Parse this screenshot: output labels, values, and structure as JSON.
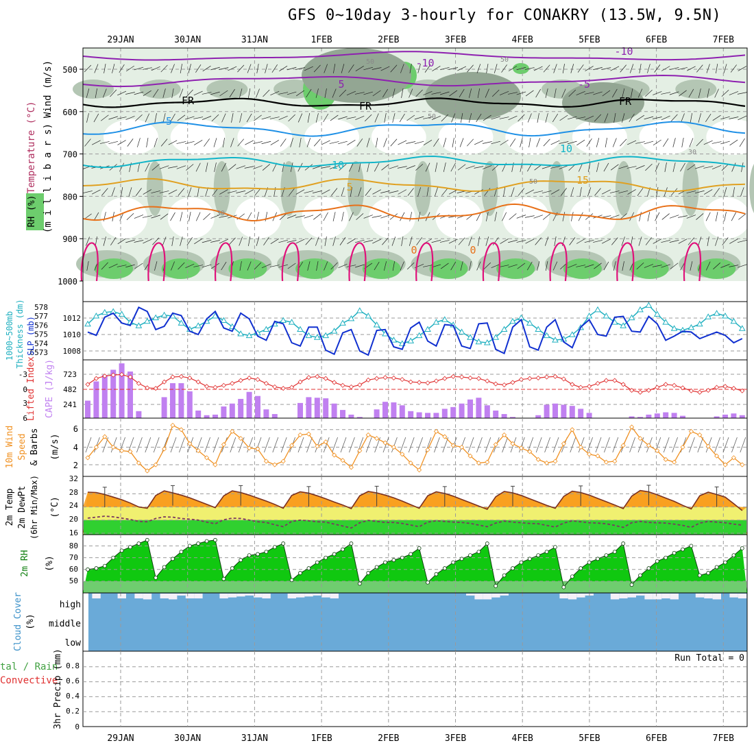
{
  "title": "GFS 0~10day 3-hourly for CONAKRY (13.5W, 9.5N)",
  "days": [
    "29JAN",
    "30JAN",
    "31JAN",
    "1FEB",
    "2FEB",
    "3FEB",
    "4FEB",
    "5FEB",
    "6FEB",
    "7FEB"
  ],
  "colors": {
    "rh_light": "#e4efe4",
    "rh_mid": "#b4c6b4",
    "rh_dark": "#93a693",
    "rh_green": "#6dcd6d",
    "temp_m10": "#8e20b0",
    "temp_fr": "#000000",
    "temp_5": "#1e90e6",
    "temp_10": "#10b4c8",
    "temp_15": "#e0a020",
    "temp_20": "#e87018",
    "temp_25": "#e0107a",
    "thickness": "#20b0c0",
    "slp": "#1030d0",
    "lifted": "#e03030",
    "cape": "#c080f0",
    "wind_speed": "#f09020",
    "temp_max_band": "#f8a020",
    "temp_mid_band": "#f0f070",
    "temp_low_band": "#30d030",
    "rh_fill": "#10c810",
    "cloud_blue": "#6aaad8",
    "cloud_white": "#f4f0f8"
  },
  "panels": {
    "upper": {
      "ylabel_wind": "Wind (m/s)",
      "ylabel_temp": "Temperature (°C)",
      "ylabel_rh": "RH (%)",
      "ylabel_units": "(m i l l i b a r s)",
      "levels": [
        "500",
        "600",
        "700",
        "800",
        "900",
        "1000"
      ],
      "contour_labels": [
        "-10",
        "-10",
        "5",
        "-5",
        "FR",
        "FR",
        "FR",
        "-5",
        "10",
        "10",
        "15",
        "5",
        "0",
        "0",
        "50",
        "50",
        "50",
        "50",
        "30",
        "30"
      ]
    },
    "thickness": {
      "label_thk": "1000~500mb",
      "label_thk2": "Thickness (dm)",
      "label_slp": "SLP (mb)",
      "thk_ticks": [
        "578",
        "577",
        "576",
        "575",
        "574",
        "6573"
      ],
      "slp_ticks": [
        "1012",
        "1010",
        "1008"
      ]
    },
    "cape": {
      "label_li": "Lifted Index",
      "label_cape": "CAPE (J/kg)",
      "li_ticks": [
        "-3",
        "0",
        "3",
        "6"
      ],
      "cape_ticks": [
        "723",
        "482",
        "241"
      ]
    },
    "wind": {
      "label1": "10m Wind",
      "label2": "Speed",
      "label3": "& Barbs",
      "label4": "(m/s)",
      "ticks": [
        "6",
        "4",
        "2"
      ]
    },
    "temp": {
      "label1": "2m Temp",
      "label2": "2m DewPt",
      "label3": "(6hr Min/Max)",
      "label4": "(°C)",
      "ticks": [
        "32",
        "28",
        "24",
        "20",
        "16"
      ]
    },
    "rh": {
      "label1": "2m RH",
      "label2": "(%)",
      "ticks": [
        "80",
        "70",
        "60",
        "50"
      ]
    },
    "cloud": {
      "label1": "Cloud Cover",
      "label2": "(%)",
      "rows": [
        "high",
        "middle",
        "low"
      ]
    },
    "precip": {
      "label1": "tal / Rain",
      "label2": "Convective",
      "label3": "3hr Precip (mm)",
      "run_total": "Run Total = 0",
      "ticks": [
        "0.8",
        "0.6",
        "0.4",
        "0.2",
        "0"
      ]
    }
  },
  "chart_data": [
    {
      "type": "line",
      "name": "slp_thickness",
      "x_unit": "3-hour steps from 28JAN 18Z",
      "series": [
        {
          "name": "SLP (mb)",
          "axis": "right",
          "values": [
            1010.3,
            1009.9,
            1012.1,
            1012.6,
            1011.4,
            1011.1,
            1013.3,
            1012.8,
            1010.6,
            1011.0,
            1012.6,
            1012.3,
            1010.4,
            1010.0,
            1011.9,
            1012.8,
            1010.8,
            1010.4,
            1012.6,
            1011.9,
            1009.8,
            1009.3,
            1011.6,
            1011.3,
            1009.0,
            1008.6,
            1010.9,
            1010.9,
            1008.1,
            1007.6,
            1010.2,
            1010.6,
            1008.0,
            1007.5,
            1010.5,
            1010.6,
            1008.5,
            1008.2,
            1010.8,
            1011.5,
            1009.2,
            1008.6,
            1011.2,
            1011.1,
            1008.6,
            1008.3,
            1011.3,
            1011.4,
            1008.2,
            1007.7,
            1010.9,
            1011.8,
            1008.5,
            1008.1,
            1010.9,
            1011.8,
            1009.1,
            1008.4,
            1010.9,
            1011.8,
            1010.0,
            1009.8,
            1012.1,
            1012.2,
            1010.4,
            1010.3,
            1012.2,
            1011.3,
            1009.3,
            1009.8,
            1010.4,
            1010.3,
            1009.5,
            1009.9,
            1010.3,
            1009.9,
            1009.0,
            1009.5
          ]
        },
        {
          "name": "1000~500mb Thickness (dm)",
          "axis": "left",
          "values": [
            576.1,
            577.0,
            577.4,
            577.5,
            577.2,
            576.3,
            575.9,
            576.4,
            576.8,
            577.1,
            577.0,
            576.2,
            575.5,
            575.9,
            576.4,
            577.0,
            576.5,
            575.8,
            575.0,
            574.8,
            575.1,
            575.5,
            576.1,
            576.5,
            576.3,
            575.5,
            574.8,
            574.6,
            574.8,
            575.3,
            576.2,
            576.7,
            577.6,
            577.0,
            576.0,
            575.0,
            574.3,
            573.9,
            574.2,
            574.8,
            575.5,
            576.3,
            576.6,
            576.0,
            575.2,
            574.6,
            574.1,
            574.0,
            574.6,
            575.5,
            576.4,
            576.8,
            576.2,
            575.5,
            574.8,
            574.3,
            574.4,
            574.9,
            575.7,
            577.0,
            577.7,
            577.0,
            576.3,
            575.9,
            576.8,
            577.7,
            578.2,
            577.2,
            576.3,
            575.6,
            575.4,
            575.7,
            576.1,
            576.9,
            577.3,
            577.0,
            576.4,
            575.6
          ]
        }
      ]
    },
    {
      "type": "bar",
      "name": "cape_lifted_index",
      "series": [
        {
          "name": "CAPE (J/kg)",
          "values": [
            300,
            630,
            740,
            830,
            940,
            800,
            120,
            0,
            0,
            360,
            600,
            600,
            460,
            130,
            50,
            60,
            200,
            250,
            330,
            450,
            380,
            150,
            70,
            0,
            0,
            260,
            360,
            350,
            340,
            250,
            140,
            60,
            20,
            0,
            150,
            280,
            270,
            220,
            120,
            100,
            90,
            90,
            160,
            190,
            250,
            320,
            350,
            220,
            130,
            70,
            20,
            0,
            0,
            50,
            230,
            250,
            230,
            210,
            160,
            90,
            0,
            0,
            0,
            0,
            30,
            20,
            60,
            80,
            100,
            90,
            40,
            0,
            0,
            0,
            30,
            60,
            80,
            50
          ]
        },
        {
          "name": "Lifted Index",
          "values": [
            -1.0,
            -2.2,
            -2.7,
            -2.9,
            -3.0,
            -2.5,
            -1.2,
            -0.3,
            -0.2,
            -1.5,
            -2.5,
            -2.6,
            -2.3,
            -1.5,
            -0.6,
            -0.4,
            -0.8,
            -1.2,
            -1.8,
            -2.3,
            -2.0,
            -1.2,
            -0.5,
            -0.2,
            -0.4,
            -1.5,
            -2.4,
            -2.6,
            -2.2,
            -1.4,
            -0.8,
            -0.5,
            -0.9,
            -1.9,
            -2.2,
            -2.4,
            -2.3,
            -2.0,
            -1.5,
            -1.4,
            -1.3,
            -1.7,
            -2.2,
            -2.6,
            -2.5,
            -2.3,
            -2.2,
            -1.7,
            -1.1,
            -0.9,
            -1.4,
            -2.0,
            -2.2,
            -2.3,
            -2.5,
            -2.6,
            -2.1,
            -1.0,
            -0.4,
            -0.6,
            -1.2,
            -1.8,
            -1.8,
            -1.0,
            0.2,
            0.6,
            0.2,
            -0.4,
            -1.0,
            -0.8,
            -0.3,
            0.3,
            0.6,
            0.2,
            -0.4,
            -0.6,
            -0.2,
            0.3
          ]
        }
      ]
    },
    {
      "type": "line",
      "name": "wind_speed",
      "series": [
        {
          "name": "10m Wind Speed (m/s)",
          "values": [
            2.8,
            4.0,
            5.2,
            4.0,
            3.6,
            3.5,
            2.2,
            1.3,
            2.0,
            3.8,
            6.5,
            6.0,
            4.4,
            3.6,
            2.8,
            2.0,
            4.3,
            5.8,
            5.0,
            3.9,
            3.8,
            2.4,
            2.0,
            2.4,
            4.2,
            5.4,
            5.5,
            4.1,
            4.6,
            3.1,
            2.5,
            1.7,
            3.6,
            5.4,
            5.0,
            4.5,
            4.0,
            3.2,
            2.2,
            1.4,
            3.7,
            5.8,
            5.2,
            4.2,
            4.0,
            3.0,
            2.2,
            2.3,
            4.3,
            5.4,
            4.4,
            3.9,
            3.5,
            2.6,
            2.2,
            2.4,
            4.4,
            6.0,
            4.0,
            3.2,
            3.0,
            2.3,
            2.4,
            4.2,
            6.3,
            5.0,
            4.2,
            3.6,
            2.6,
            2.3,
            4.0,
            5.8,
            5.4,
            4.1,
            3.0,
            2.0,
            2.8,
            2.0
          ]
        }
      ]
    },
    {
      "type": "area",
      "name": "temperature",
      "series": [
        {
          "name": "2m Temp (°C)",
          "values": [
            28.5,
            28.4,
            27.8,
            27.0,
            26.2,
            25.2,
            24.0,
            23.6,
            27.5,
            28.9,
            28.3,
            27.6,
            26.8,
            25.8,
            24.8,
            23.8,
            27.4,
            28.9,
            28.4,
            27.6,
            26.7,
            25.8,
            24.8,
            23.6,
            27.5,
            28.6,
            28.2,
            27.4,
            26.5,
            25.5,
            24.6,
            23.5,
            27.4,
            28.7,
            28.3,
            27.6,
            26.8,
            25.8,
            24.7,
            23.6,
            27.4,
            28.6,
            28.1,
            27.3,
            26.3,
            25.3,
            24.3,
            23.3,
            27.1,
            28.7,
            28.3,
            27.5,
            26.5,
            25.5,
            24.5,
            23.6,
            27.2,
            28.8,
            28.4,
            27.6,
            26.6,
            25.6,
            24.6,
            23.5,
            27.3,
            29.0,
            28.6,
            27.7,
            26.7,
            25.7,
            24.5,
            23.4,
            27.4,
            28.5,
            27.8,
            27.0,
            25.0,
            22.9
          ]
        },
        {
          "name": "2m DewPt (°C)",
          "values": [
            20.6,
            20.9,
            21.2,
            21.0,
            20.6,
            20.2,
            19.6,
            19.5,
            20.5,
            21.0,
            20.9,
            20.5,
            20.3,
            20.0,
            19.4,
            18.9,
            20.1,
            20.6,
            20.5,
            20.0,
            19.5,
            19.3,
            18.6,
            18.0,
            19.6,
            20.0,
            19.8,
            19.5,
            19.4,
            18.8,
            18.2,
            17.6,
            19.2,
            19.9,
            19.6,
            19.3,
            19.3,
            19.0,
            18.5,
            18.0,
            19.4,
            19.8,
            19.6,
            19.4,
            19.3,
            19.0,
            18.5,
            18.0,
            19.1,
            19.7,
            19.4,
            19.2,
            19.0,
            18.9,
            18.4,
            17.9,
            19.1,
            19.8,
            19.5,
            19.2,
            19.1,
            18.9,
            18.4,
            17.8,
            19.2,
            19.6,
            19.3,
            19.2,
            19.1,
            18.8,
            18.4,
            17.8,
            19.1,
            19.6,
            19.4,
            19.2,
            18.8,
            18.5
          ]
        }
      ]
    },
    {
      "type": "area",
      "name": "relative_humidity",
      "series": [
        {
          "name": "2m RH (%)",
          "values": [
            60,
            61,
            63,
            70,
            76,
            79,
            82,
            85,
            53,
            62,
            69,
            75,
            80,
            82,
            84,
            85,
            52,
            61,
            68,
            72,
            73,
            75,
            79,
            82,
            51,
            57,
            61,
            66,
            70,
            73,
            77,
            82,
            48,
            57,
            62,
            66,
            68,
            70,
            73,
            78,
            49,
            56,
            61,
            66,
            69,
            72,
            75,
            82,
            46,
            55,
            61,
            66,
            69,
            72,
            75,
            79,
            45,
            54,
            61,
            66,
            69,
            72,
            75,
            82,
            47,
            55,
            61,
            67,
            70,
            74,
            77,
            80,
            55,
            57,
            62,
            66,
            72,
            78
          ]
        }
      ]
    },
    {
      "type": "heatmap",
      "name": "cloud_cover",
      "rows": [
        "high",
        "middle",
        "low"
      ],
      "high_values": [
        100,
        75,
        100,
        100,
        75,
        100,
        75,
        70,
        100,
        75,
        70,
        90,
        75,
        75,
        100,
        100,
        75,
        80,
        85,
        90,
        80,
        75,
        100,
        100,
        75,
        80,
        85,
        90,
        80,
        75,
        100,
        100,
        100,
        100,
        100,
        100,
        100,
        100,
        100,
        100,
        100,
        100,
        100,
        100,
        100,
        90,
        70,
        70,
        80,
        90,
        100,
        100,
        100,
        100,
        100,
        100,
        75,
        70,
        80,
        90,
        100,
        100,
        70,
        75,
        80,
        90,
        70,
        70,
        75,
        70,
        100,
        100,
        80,
        75,
        70,
        100,
        80,
        75
      ],
      "middle_values": [
        0,
        0,
        0,
        0,
        0,
        0,
        0,
        0,
        0,
        0,
        0,
        0,
        0,
        0,
        0,
        0,
        0,
        0,
        0,
        0,
        0,
        0,
        0,
        0,
        0,
        0,
        0,
        0,
        0,
        0,
        0,
        0,
        0,
        0,
        0,
        0,
        0,
        0,
        0,
        0,
        0,
        0,
        0,
        0,
        0,
        0,
        0,
        0,
        0,
        0,
        0,
        0,
        0,
        0,
        0,
        0,
        0,
        0,
        0,
        0,
        0,
        0,
        0,
        0,
        0,
        0,
        0,
        0,
        0,
        0,
        0,
        0,
        0,
        0,
        0,
        0,
        0,
        0
      ],
      "low_values": [
        0,
        0,
        0,
        0,
        0,
        0,
        0,
        0,
        0,
        0,
        0,
        0,
        0,
        0,
        0,
        0,
        0,
        0,
        0,
        0,
        0,
        0,
        0,
        0,
        0,
        0,
        0,
        0,
        0,
        0,
        0,
        0,
        0,
        0,
        0,
        0,
        0,
        0,
        0,
        0,
        0,
        0,
        0,
        0,
        0,
        0,
        0,
        0,
        0,
        0,
        0,
        0,
        0,
        0,
        0,
        0,
        0,
        0,
        0,
        0,
        0,
        0,
        0,
        0,
        0,
        0,
        0,
        0,
        0,
        0,
        0,
        0,
        0,
        0,
        0,
        0,
        0,
        0
      ]
    },
    {
      "type": "bar",
      "name": "precipitation",
      "ylim": [
        0,
        0.9
      ],
      "series": [
        {
          "name": "3hr Precip (mm)",
          "values": []
        }
      ]
    }
  ]
}
